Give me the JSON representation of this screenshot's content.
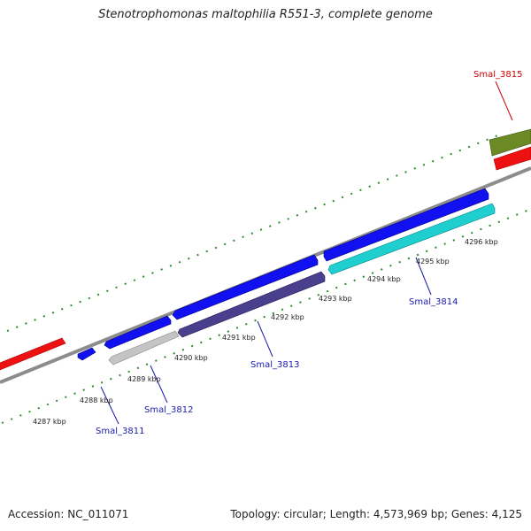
{
  "title": "Stenotrophomonas maltophilia R551-3, complete genome",
  "footer": {
    "accession": "Accession: NC_011071",
    "topology": "Topology: circular; Length: 4,573,969 bp; Genes: 4,125"
  },
  "colors": {
    "backbone": "#8c8c8c",
    "ticks": "#2e8b2e",
    "gene_label": "#1a1aaa",
    "highlight_label": "#cc0000",
    "cds_plus": "#1010f0",
    "cds_minus_purple": "#4a3f8c",
    "cds_minus_gray": "#c4c4c4",
    "cds_minus_cyan": "#1fcfcf",
    "rna_red": "#ee1111",
    "olive": "#6b8a23"
  },
  "kbp_ticks": [
    {
      "label": "4287 kbp"
    },
    {
      "label": "4288 kbp"
    },
    {
      "label": "4289 kbp"
    },
    {
      "label": "4290 kbp"
    },
    {
      "label": "4291 kbp"
    },
    {
      "label": "4292 kbp"
    },
    {
      "label": "4293 kbp"
    },
    {
      "label": "4294 kbp"
    },
    {
      "label": "4295 kbp"
    },
    {
      "label": "4296 kbp"
    }
  ],
  "gene_labels": [
    {
      "text": "Smal_3811"
    },
    {
      "text": "Smal_3812"
    },
    {
      "text": "Smal_3813"
    },
    {
      "text": "Smal_3814"
    },
    {
      "text": "Smal_3815"
    }
  ]
}
